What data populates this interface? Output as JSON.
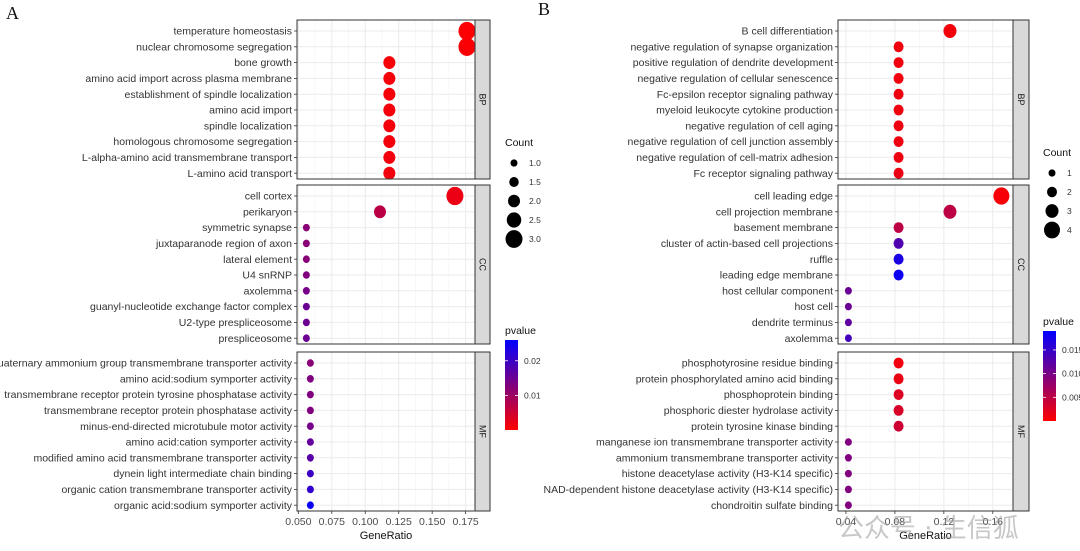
{
  "chart_data": [
    {
      "panel": "A",
      "type": "scatter",
      "subtype": "dotplot",
      "xlabel": "GeneRatio",
      "ylabel": "",
      "xlim": [
        0.049,
        0.182
      ],
      "xticks": [
        0.05,
        0.075,
        0.1,
        0.125,
        0.15,
        0.175
      ],
      "xtick_labels": [
        "0.050",
        "0.075",
        "0.100",
        "0.125",
        "0.150",
        "0.175"
      ],
      "grid": true,
      "legend_placement": "right",
      "size_legend": {
        "title": "Count",
        "values": [
          1.0,
          1.5,
          2.0,
          2.5,
          3.0
        ],
        "labels": [
          "1.0",
          "1.5",
          "2.0",
          "2.5",
          "3.0"
        ]
      },
      "color_legend": {
        "title": "pvalue",
        "range": [
          0.0,
          0.026
        ],
        "ticks": [
          0.01,
          0.02
        ],
        "tick_labels": [
          "0.01",
          "0.02"
        ],
        "low_color": "#ff0000",
        "high_color": "#0000ff"
      },
      "facets": [
        {
          "name": "BP",
          "terms": [
            {
              "term": "temperature homeostasis",
              "gene_ratio": 0.176,
              "count": 3,
              "pvalue": 0.0003
            },
            {
              "term": "nuclear chromosome segregation",
              "gene_ratio": 0.176,
              "count": 3,
              "pvalue": 0.0005
            },
            {
              "term": "bone growth",
              "gene_ratio": 0.118,
              "count": 2,
              "pvalue": 0.0008
            },
            {
              "term": "amino acid import across plasma membrane",
              "gene_ratio": 0.118,
              "count": 2,
              "pvalue": 0.0009
            },
            {
              "term": "establishment of spindle localization",
              "gene_ratio": 0.118,
              "count": 2,
              "pvalue": 0.001
            },
            {
              "term": "amino acid import",
              "gene_ratio": 0.118,
              "count": 2,
              "pvalue": 0.001
            },
            {
              "term": "spindle localization",
              "gene_ratio": 0.118,
              "count": 2,
              "pvalue": 0.0011
            },
            {
              "term": "homologous chromosome segregation",
              "gene_ratio": 0.118,
              "count": 2,
              "pvalue": 0.0012
            },
            {
              "term": "L-alpha-amino acid transmembrane transport",
              "gene_ratio": 0.118,
              "count": 2,
              "pvalue": 0.0013
            },
            {
              "term": "L-amino acid transport",
              "gene_ratio": 0.118,
              "count": 2,
              "pvalue": 0.0014
            }
          ]
        },
        {
          "name": "CC",
          "terms": [
            {
              "term": "cell cortex",
              "gene_ratio": 0.167,
              "count": 3,
              "pvalue": 0.002
            },
            {
              "term": "perikaryon",
              "gene_ratio": 0.111,
              "count": 2,
              "pvalue": 0.007
            },
            {
              "term": "symmetric synapse",
              "gene_ratio": 0.056,
              "count": 1,
              "pvalue": 0.012
            },
            {
              "term": "juxtaparanode region of axon",
              "gene_ratio": 0.056,
              "count": 1,
              "pvalue": 0.012
            },
            {
              "term": "lateral element",
              "gene_ratio": 0.056,
              "count": 1,
              "pvalue": 0.012
            },
            {
              "term": "U4 snRNP",
              "gene_ratio": 0.056,
              "count": 1,
              "pvalue": 0.013
            },
            {
              "term": "axolemma",
              "gene_ratio": 0.056,
              "count": 1,
              "pvalue": 0.014
            },
            {
              "term": "guanyl-nucleotide exchange factor complex",
              "gene_ratio": 0.056,
              "count": 1,
              "pvalue": 0.015
            },
            {
              "term": "U2-type prespliceosome",
              "gene_ratio": 0.056,
              "count": 1,
              "pvalue": 0.015
            },
            {
              "term": "prespliceosome",
              "gene_ratio": 0.056,
              "count": 1,
              "pvalue": 0.015
            }
          ]
        },
        {
          "name": "MF",
          "terms": [
            {
              "term": "quaternary ammonium group transmembrane transporter activity",
              "gene_ratio": 0.059,
              "count": 1,
              "pvalue": 0.012
            },
            {
              "term": "amino acid:sodium symporter activity",
              "gene_ratio": 0.059,
              "count": 1,
              "pvalue": 0.013
            },
            {
              "term": "transmembrane receptor protein tyrosine phosphatase activity",
              "gene_ratio": 0.059,
              "count": 1,
              "pvalue": 0.013
            },
            {
              "term": "transmembrane receptor protein phosphatase activity",
              "gene_ratio": 0.059,
              "count": 1,
              "pvalue": 0.013
            },
            {
              "term": "minus-end-directed microtubule motor activity",
              "gene_ratio": 0.059,
              "count": 1,
              "pvalue": 0.014
            },
            {
              "term": "amino acid:cation symporter activity",
              "gene_ratio": 0.059,
              "count": 1,
              "pvalue": 0.016
            },
            {
              "term": "modified amino acid transmembrane transporter activity",
              "gene_ratio": 0.059,
              "count": 1,
              "pvalue": 0.017
            },
            {
              "term": "dynein light intermediate chain binding",
              "gene_ratio": 0.059,
              "count": 1,
              "pvalue": 0.02
            },
            {
              "term": "organic cation transmembrane transporter activity",
              "gene_ratio": 0.059,
              "count": 1,
              "pvalue": 0.021
            },
            {
              "term": "organic acid:sodium symporter activity",
              "gene_ratio": 0.059,
              "count": 1,
              "pvalue": 0.025
            }
          ]
        }
      ]
    },
    {
      "panel": "B",
      "type": "scatter",
      "subtype": "dotplot",
      "xlabel": "GeneRatio",
      "ylabel": "",
      "xlim": [
        0.0335,
        0.1765
      ],
      "xticks": [
        0.04,
        0.08,
        0.12,
        0.16
      ],
      "xtick_labels": [
        "0.04",
        "0.08",
        "0.12",
        "0.16"
      ],
      "grid": true,
      "legend_placement": "right",
      "size_legend": {
        "title": "Count",
        "values": [
          1,
          2,
          3,
          4
        ],
        "labels": [
          "1",
          "2",
          "3",
          "4"
        ]
      },
      "color_legend": {
        "title": "pvalue",
        "range": [
          0.0,
          0.019
        ],
        "ticks": [
          0.005,
          0.01,
          0.015
        ],
        "tick_labels": [
          "0.005",
          "0.010",
          "0.015"
        ],
        "low_color": "#ff0000",
        "high_color": "#0000ff"
      },
      "facets": [
        {
          "name": "BP",
          "terms": [
            {
              "term": "B cell differentiation",
              "gene_ratio": 0.125,
              "count": 3,
              "pvalue": 0.0008
            },
            {
              "term": "negative regulation of synapse organization",
              "gene_ratio": 0.083,
              "count": 2,
              "pvalue": 0.001
            },
            {
              "term": "positive regulation of dendrite development",
              "gene_ratio": 0.083,
              "count": 2,
              "pvalue": 0.001
            },
            {
              "term": "negative regulation of cellular senescence",
              "gene_ratio": 0.083,
              "count": 2,
              "pvalue": 0.001
            },
            {
              "term": "Fc-epsilon receptor signaling pathway",
              "gene_ratio": 0.083,
              "count": 2,
              "pvalue": 0.0011
            },
            {
              "term": "myeloid leukocyte cytokine production",
              "gene_ratio": 0.083,
              "count": 2,
              "pvalue": 0.0011
            },
            {
              "term": "negative regulation of cell aging",
              "gene_ratio": 0.083,
              "count": 2,
              "pvalue": 0.0012
            },
            {
              "term": "negative regulation of cell junction assembly",
              "gene_ratio": 0.083,
              "count": 2,
              "pvalue": 0.0012
            },
            {
              "term": "negative regulation of cell-matrix adhesion",
              "gene_ratio": 0.083,
              "count": 2,
              "pvalue": 0.0013
            },
            {
              "term": "Fc receptor signaling pathway",
              "gene_ratio": 0.083,
              "count": 2,
              "pvalue": 0.0014
            }
          ]
        },
        {
          "name": "CC",
          "terms": [
            {
              "term": "cell leading edge",
              "gene_ratio": 0.167,
              "count": 4,
              "pvalue": 0.0005
            },
            {
              "term": "cell projection membrane",
              "gene_ratio": 0.125,
              "count": 3,
              "pvalue": 0.005
            },
            {
              "term": "basement membrane",
              "gene_ratio": 0.083,
              "count": 2,
              "pvalue": 0.005
            },
            {
              "term": "cluster of actin-based cell projections",
              "gene_ratio": 0.083,
              "count": 2,
              "pvalue": 0.013
            },
            {
              "term": "ruffle",
              "gene_ratio": 0.083,
              "count": 2,
              "pvalue": 0.017
            },
            {
              "term": "leading edge membrane",
              "gene_ratio": 0.083,
              "count": 2,
              "pvalue": 0.018
            },
            {
              "term": "host cellular component",
              "gene_ratio": 0.042,
              "count": 1,
              "pvalue": 0.011
            },
            {
              "term": "host cell",
              "gene_ratio": 0.042,
              "count": 1,
              "pvalue": 0.011
            },
            {
              "term": "dendrite terminus",
              "gene_ratio": 0.042,
              "count": 1,
              "pvalue": 0.012
            },
            {
              "term": "axolemma",
              "gene_ratio": 0.042,
              "count": 1,
              "pvalue": 0.014
            }
          ]
        },
        {
          "name": "MF",
          "terms": [
            {
              "term": "phosphotyrosine residue binding",
              "gene_ratio": 0.083,
              "count": 2,
              "pvalue": 0.001
            },
            {
              "term": "protein phosphorylated amino acid binding",
              "gene_ratio": 0.083,
              "count": 2,
              "pvalue": 0.0015
            },
            {
              "term": "phosphoprotein binding",
              "gene_ratio": 0.083,
              "count": 2,
              "pvalue": 0.0025
            },
            {
              "term": "phosphoric diester hydrolase activity",
              "gene_ratio": 0.083,
              "count": 2,
              "pvalue": 0.003
            },
            {
              "term": "protein tyrosine kinase binding",
              "gene_ratio": 0.083,
              "count": 2,
              "pvalue": 0.0038
            },
            {
              "term": "manganese ion transmembrane transporter activity",
              "gene_ratio": 0.042,
              "count": 1,
              "pvalue": 0.0095
            },
            {
              "term": "ammonium transmembrane transporter activity",
              "gene_ratio": 0.042,
              "count": 1,
              "pvalue": 0.0095
            },
            {
              "term": "histone deacetylase activity (H3-K14 specific)",
              "gene_ratio": 0.042,
              "count": 1,
              "pvalue": 0.0095
            },
            {
              "term": "NAD-dependent histone deacetylase activity (H3-K14 specific)",
              "gene_ratio": 0.042,
              "count": 1,
              "pvalue": 0.0095
            },
            {
              "term": "chondroitin sulfate binding",
              "gene_ratio": 0.042,
              "count": 1,
              "pvalue": 0.0095
            }
          ]
        }
      ]
    }
  ],
  "figure": {
    "panel_letters": [
      "A",
      "B"
    ],
    "watermark": "公众号 · 生信狐"
  }
}
